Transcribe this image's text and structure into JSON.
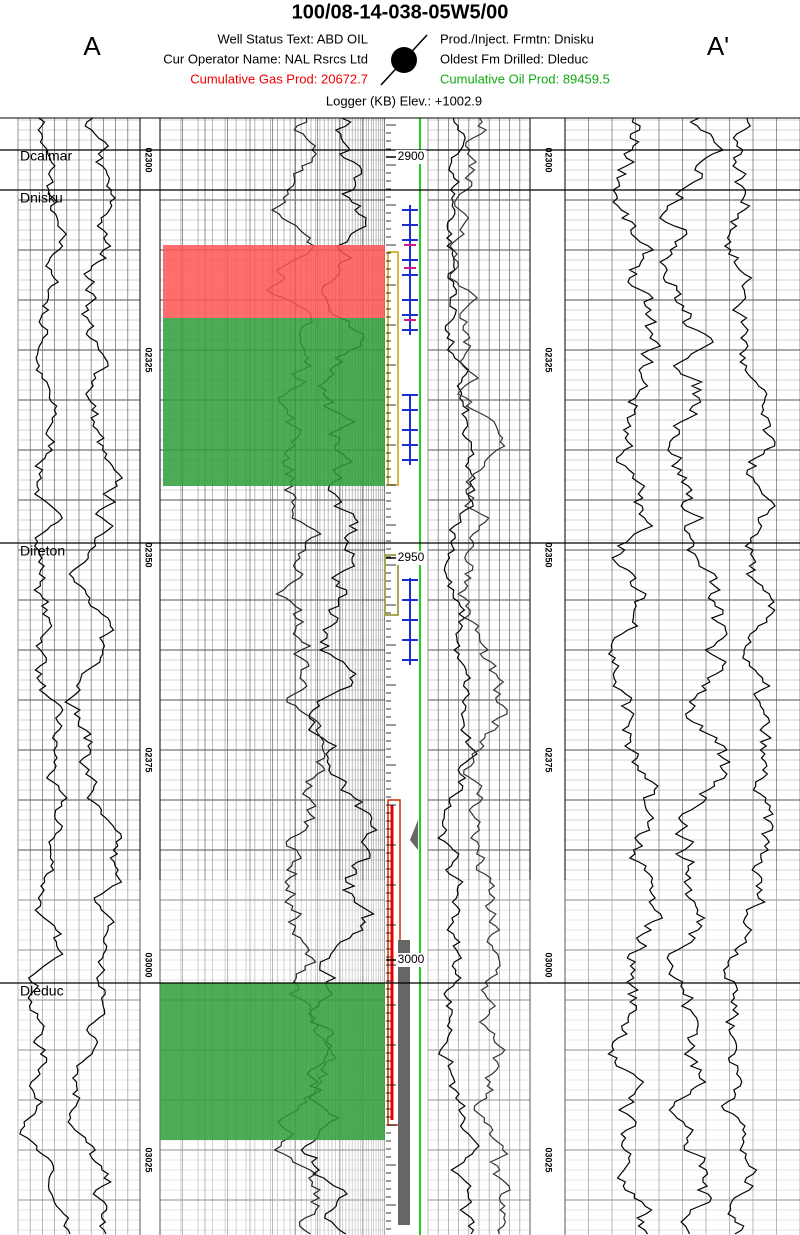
{
  "header": {
    "title": "100/08-14-038-05W5/00",
    "left_marker": "A",
    "right_marker": "A'",
    "well_status": "Well Status Text: ABD OIL",
    "operator": "Cur Operator Name: NAL Rsrcs Ltd",
    "cum_gas": "Cumulative Gas Prod: 20672.7",
    "prod_formation": "Prod./Inject. Frmtn: Dnisku",
    "oldest_formation": "Oldest Fm Drilled: Dleduc",
    "cum_oil": "Cumulative Oil Prod: 89459.5",
    "elevation": "Logger (KB) Elev.: +1002.9"
  },
  "formations": [
    "Dcalmar",
    "Dnisku",
    "Direton",
    "Dleduc"
  ],
  "depth_marks": [
    "2900",
    "2950",
    "3000"
  ],
  "log_depths_left": [
    "02300",
    "02325",
    "02350",
    "02375",
    "03000",
    "03025"
  ],
  "log_depths_right": [
    "02300",
    "02325",
    "02350",
    "02375",
    "03000",
    "03025"
  ]
}
